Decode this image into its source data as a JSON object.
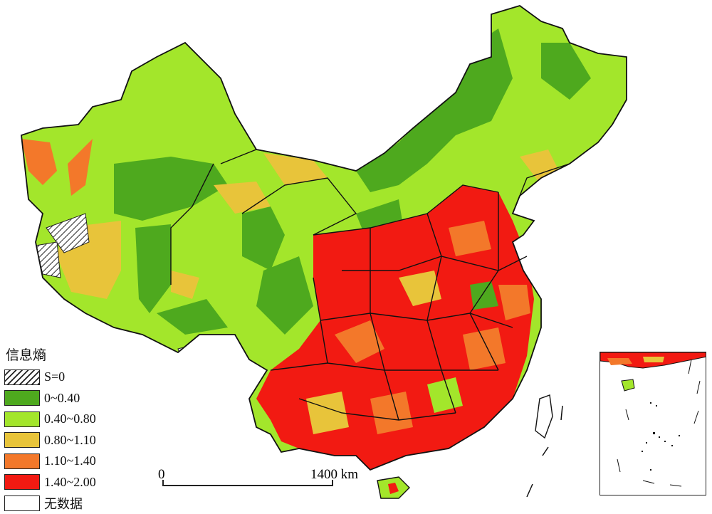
{
  "legend": {
    "title": "信息熵",
    "items": [
      {
        "label": "S=0",
        "color": "hatch"
      },
      {
        "label": "0~0.40",
        "color": "#4ea91e"
      },
      {
        "label": "0.40~0.80",
        "color": "#a3e62b"
      },
      {
        "label": "0.80~1.10",
        "color": "#e8c43a"
      },
      {
        "label": "1.10~1.40",
        "color": "#f3782a"
      },
      {
        "label": "1.40~2.00",
        "color": "#f21a12"
      },
      {
        "label": "无数据",
        "color": "#ffffff"
      }
    ]
  },
  "scale_bar": {
    "start": "0",
    "end": "1400 km"
  }
}
